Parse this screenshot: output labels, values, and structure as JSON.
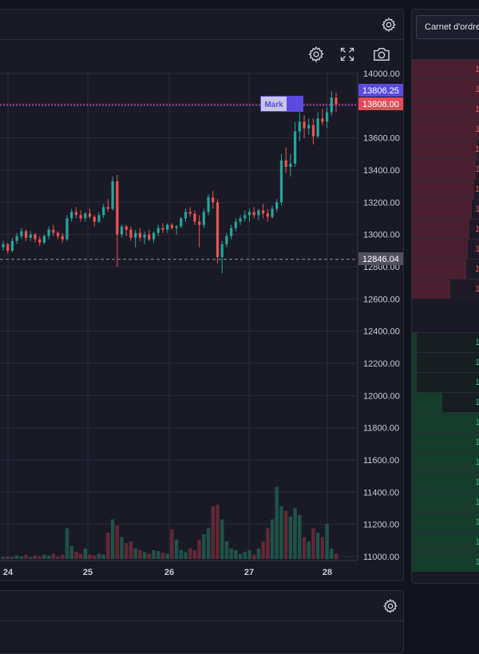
{
  "chart_panel": {
    "toolbar": {
      "settings_icon": "gear-icon",
      "fullscreen_icon": "expand-icon",
      "snapshot_icon": "camera-icon"
    },
    "header_settings_icon": "gear-icon"
  },
  "chart_data": {
    "type": "candlestick",
    "x_tick_labels": [
      "24",
      "25",
      "26",
      "27",
      "28"
    ],
    "y_tick_labels": [
      "14000.00",
      "13800.00",
      "13600.00",
      "13400.00",
      "13200.00",
      "13000.00",
      "12800.00",
      "12600.00",
      "12400.00",
      "12200.00",
      "12000.00",
      "11800.00",
      "11600.00",
      "11400.00",
      "11200.00",
      "11000.00"
    ],
    "ylim": [
      11000,
      14000
    ],
    "grid": true,
    "up_color": "#26a69a",
    "down_color": "#ef5350",
    "price_labels": {
      "mark": {
        "value": "13806.25",
        "color": "#5b4be0"
      },
      "last": {
        "value": "13808.00",
        "color": "#e84a5a"
      },
      "reference": {
        "value": "12846.04",
        "color": "#50505e"
      }
    },
    "mark_flag": "Mark",
    "candles": [
      [
        12920,
        12960,
        12900,
        12940
      ],
      [
        12940,
        12950,
        12880,
        12900
      ],
      [
        12900,
        12980,
        12890,
        12960
      ],
      [
        12960,
        13010,
        12940,
        12990
      ],
      [
        12990,
        13040,
        12970,
        13020
      ],
      [
        13020,
        13030,
        12960,
        12980
      ],
      [
        12980,
        13020,
        12960,
        13000
      ],
      [
        13000,
        13010,
        12950,
        12970
      ],
      [
        12970,
        12990,
        12930,
        12950
      ],
      [
        12950,
        13000,
        12940,
        12990
      ],
      [
        12990,
        13050,
        12970,
        13030
      ],
      [
        13030,
        13060,
        12990,
        13010
      ],
      [
        13010,
        13020,
        12970,
        12990
      ],
      [
        12990,
        13010,
        12950,
        12970
      ],
      [
        12970,
        13120,
        12960,
        13100
      ],
      [
        13100,
        13160,
        13080,
        13140
      ],
      [
        13140,
        13170,
        13100,
        13120
      ],
      [
        13120,
        13150,
        13080,
        13100
      ],
      [
        13100,
        13140,
        13080,
        13130
      ],
      [
        13130,
        13160,
        13100,
        13110
      ],
      [
        13110,
        13120,
        13050,
        13080
      ],
      [
        13080,
        13140,
        13070,
        13120
      ],
      [
        13120,
        13190,
        13100,
        13170
      ],
      [
        13170,
        13220,
        13140,
        13160
      ],
      [
        13160,
        13360,
        13150,
        13330
      ],
      [
        13330,
        13370,
        12800,
        13000
      ],
      [
        13000,
        13060,
        12980,
        13050
      ],
      [
        13050,
        13060,
        12990,
        13030
      ],
      [
        13030,
        13050,
        12960,
        12980
      ],
      [
        12980,
        13030,
        12920,
        13010
      ],
      [
        13010,
        13040,
        12960,
        12980
      ],
      [
        12980,
        13020,
        12940,
        13000
      ],
      [
        13000,
        13030,
        12960,
        12970
      ],
      [
        12970,
        13020,
        12950,
        13010
      ],
      [
        13010,
        13060,
        12990,
        13040
      ],
      [
        13040,
        13070,
        13010,
        13030
      ],
      [
        13030,
        13070,
        13010,
        13060
      ],
      [
        13060,
        13070,
        13030,
        13040
      ],
      [
        13040,
        13060,
        13000,
        13050
      ],
      [
        13050,
        13110,
        13040,
        13100
      ],
      [
        13100,
        13160,
        13080,
        13140
      ],
      [
        13140,
        13170,
        13110,
        13130
      ],
      [
        13130,
        13150,
        13060,
        13080
      ],
      [
        13080,
        13120,
        12920,
        13060
      ],
      [
        13060,
        13160,
        13040,
        13140
      ],
      [
        13140,
        13250,
        13120,
        13230
      ],
      [
        13230,
        13270,
        13160,
        13200
      ],
      [
        13200,
        13220,
        12820,
        12860
      ],
      [
        12860,
        12960,
        12760,
        12940
      ],
      [
        12940,
        13010,
        12920,
        12990
      ],
      [
        12990,
        13060,
        12970,
        13040
      ],
      [
        13040,
        13100,
        13020,
        13080
      ],
      [
        13080,
        13120,
        13060,
        13100
      ],
      [
        13100,
        13150,
        13080,
        13120
      ],
      [
        13120,
        13160,
        13080,
        13140
      ],
      [
        13140,
        13170,
        13100,
        13120
      ],
      [
        13120,
        13160,
        13090,
        13150
      ],
      [
        13150,
        13190,
        13100,
        13130
      ],
      [
        13130,
        13160,
        13080,
        13110
      ],
      [
        13110,
        13180,
        13100,
        13160
      ],
      [
        13160,
        13220,
        13140,
        13200
      ],
      [
        13200,
        13500,
        13180,
        13460
      ],
      [
        13460,
        13540,
        13380,
        13420
      ],
      [
        13420,
        13500,
        13360,
        13440
      ],
      [
        13440,
        13700,
        13420,
        13640
      ],
      [
        13640,
        13760,
        13580,
        13700
      ],
      [
        13700,
        13740,
        13600,
        13660
      ],
      [
        13660,
        13720,
        13620,
        13680
      ],
      [
        13680,
        13720,
        13560,
        13610
      ],
      [
        13610,
        13760,
        13600,
        13720
      ],
      [
        13720,
        13780,
        13680,
        13700
      ],
      [
        13700,
        13790,
        13660,
        13760
      ],
      [
        13760,
        13890,
        13740,
        13850
      ],
      [
        13850,
        13880,
        13760,
        13808
      ]
    ],
    "volumes": [
      0.02,
      0.03,
      0.02,
      0.04,
      0.03,
      0.05,
      0.02,
      0.04,
      0.03,
      0.05,
      0.04,
      0.06,
      0.03,
      0.05,
      0.35,
      0.15,
      0.08,
      0.06,
      0.12,
      0.05,
      0.04,
      0.06,
      0.05,
      0.3,
      0.45,
      0.38,
      0.25,
      0.18,
      0.2,
      0.12,
      0.1,
      0.08,
      0.06,
      0.1,
      0.09,
      0.07,
      0.06,
      0.34,
      0.22,
      0.1,
      0.08,
      0.12,
      0.1,
      0.22,
      0.28,
      0.35,
      0.6,
      0.62,
      0.45,
      0.2,
      0.12,
      0.1,
      0.06,
      0.08,
      0.1,
      0.05,
      0.12,
      0.2,
      0.35,
      0.45,
      0.82,
      0.6,
      0.55,
      0.48,
      0.58,
      0.5,
      0.25,
      0.2,
      0.35,
      0.3,
      0.25,
      0.4,
      0.12,
      0.06
    ]
  },
  "order_book": {
    "tab_label": "Carnet d'ordre",
    "ask_rows": [
      {
        "price": "1",
        "depth": 0.9
      },
      {
        "price": "1",
        "depth": 0.9
      },
      {
        "price": "1",
        "depth": 0.88
      },
      {
        "price": "1",
        "depth": 0.85
      },
      {
        "price": "1",
        "depth": 0.82
      },
      {
        "price": "1",
        "depth": 0.8
      },
      {
        "price": "1",
        "depth": 0.78
      },
      {
        "price": "1",
        "depth": 0.75
      },
      {
        "price": "1",
        "depth": 0.72
      },
      {
        "price": "1",
        "depth": 0.7
      },
      {
        "price": "1",
        "depth": 0.68
      },
      {
        "price": "1",
        "depth": 0.48
      }
    ],
    "bid_rows": [
      {
        "price": "1",
        "depth": 0.06
      },
      {
        "price": "1",
        "depth": 0.06
      },
      {
        "price": "1",
        "depth": 0.06
      },
      {
        "price": "1",
        "depth": 0.38
      },
      {
        "price": "1",
        "depth": 0.9
      },
      {
        "price": "1",
        "depth": 0.9
      },
      {
        "price": "1",
        "depth": 0.9
      },
      {
        "price": "1",
        "depth": 0.9
      },
      {
        "price": "1",
        "depth": 0.9
      },
      {
        "price": "1",
        "depth": 0.9
      },
      {
        "price": "1",
        "depth": 0.9
      },
      {
        "price": "1",
        "depth": 0.9
      }
    ]
  },
  "bottom_panel": {
    "settings_icon": "gear-icon"
  }
}
